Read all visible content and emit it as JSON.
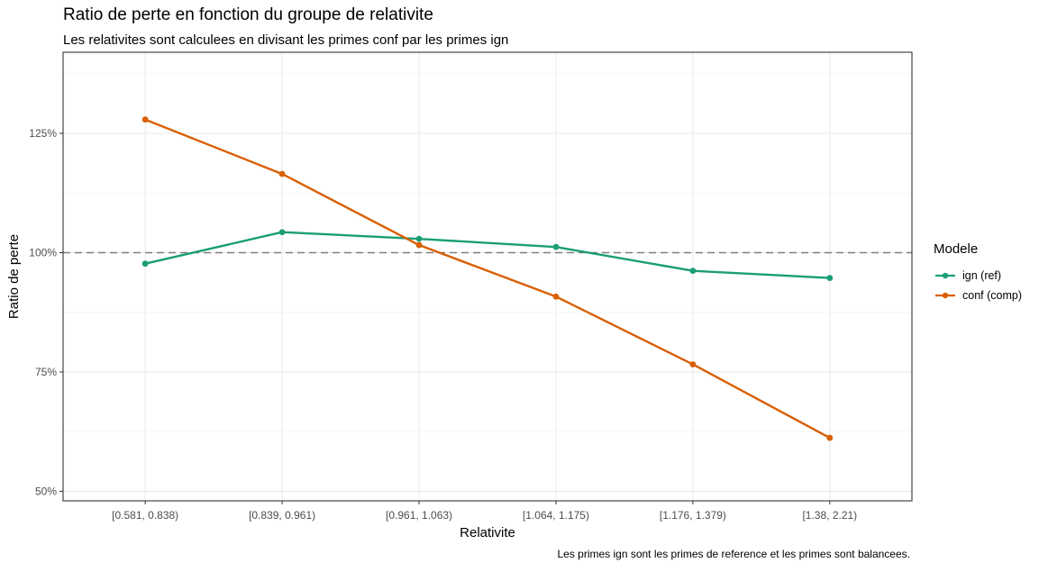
{
  "chart_data": {
    "type": "line",
    "title": "Ratio de perte en fonction du groupe de relativite",
    "subtitle": "Les relativites sont calculees en divisant les primes conf par les primes ign",
    "caption": "Les primes ign sont les primes de reference et les primes sont balancees.",
    "xlabel": "Relativite",
    "ylabel": "Ratio de perte",
    "categories": [
      "[0.581, 0.838)",
      "[0.839, 0.961)",
      "[0.961, 1.063)",
      "[1.064, 1.175)",
      "[1.176, 1.379)",
      "[1.38, 2.21)"
    ],
    "y_ticks": [
      0.5,
      0.75,
      1.0,
      1.25
    ],
    "y_tick_labels": [
      "50%",
      "75%",
      "100%",
      "125%"
    ],
    "ylim": [
      0.48,
      1.42
    ],
    "reference_line": 1.0,
    "grid": true,
    "legend_title": "Modele",
    "legend_position": "right",
    "series": [
      {
        "name": "ign (ref)",
        "color": "#1b9e77",
        "values": [
          0.977,
          1.043,
          1.029,
          1.012,
          0.962,
          0.947
        ]
      },
      {
        "name": "conf (comp)",
        "color": "#d95f02",
        "values": [
          1.279,
          1.165,
          1.016,
          0.908,
          0.766,
          0.612
        ]
      }
    ]
  }
}
